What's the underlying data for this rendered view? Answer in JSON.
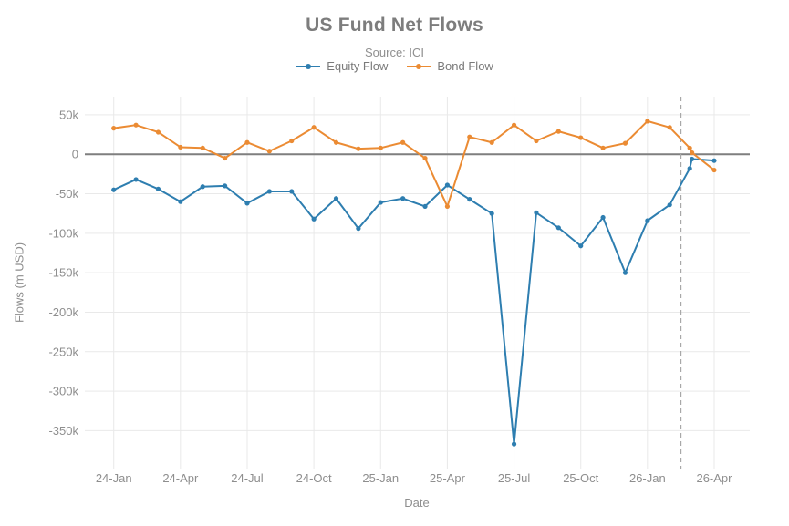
{
  "chart_data": {
    "type": "line",
    "title": "US Fund Net Flows",
    "subtitle": "Source: ICI",
    "xlabel": "Date",
    "ylabel": "Flows (m USD)",
    "values_unit": "k (thousands of m USD)",
    "grid": true,
    "legend_position": "top-center",
    "x_tick_labels": [
      "24-Jan",
      "24-Apr",
      "24-Jul",
      "24-Oct",
      "25-Jan",
      "25-Apr",
      "25-Jul",
      "25-Oct",
      "26-Jan",
      "26-Apr"
    ],
    "x_tick_month_index": [
      0,
      3,
      6,
      9,
      12,
      15,
      18,
      21,
      24,
      27
    ],
    "y_tick_labels": [
      "50k",
      "0",
      "-50k",
      "-100k",
      "-150k",
      "-200k",
      "-250k",
      "-300k",
      "-350k"
    ],
    "y_tick_values": [
      50,
      0,
      -50,
      -100,
      -150,
      -200,
      -250,
      -300,
      -350
    ],
    "ylim": [
      -398,
      73
    ],
    "xlim_month_index": [
      -1.3,
      28.6
    ],
    "dashed_vline_month_index": 25.5,
    "zero_line": true,
    "colors": {
      "background": "#ffffff",
      "grid": "#e9e9e9",
      "zero_line": "#7f7f7f",
      "divider": "#a8a8a8"
    },
    "x_months": [
      "24-Jan",
      "24-Feb",
      "24-Mar",
      "24-Apr",
      "24-May",
      "24-Jun",
      "24-Jul",
      "24-Aug",
      "24-Sep",
      "24-Oct",
      "24-Nov",
      "24-Dec",
      "25-Jan",
      "25-Feb",
      "25-Mar",
      "25-Apr",
      "25-May",
      "25-Jun",
      "25-Jul",
      "25-Aug",
      "25-Sep",
      "25-Oct",
      "25-Nov",
      "25-Dec",
      "26-Jan",
      "26-Feb",
      "26-Mar",
      "26-Mar",
      "26-Apr"
    ],
    "series": [
      {
        "name": "Equity Flow",
        "color": "#2e7eb0",
        "x_month_index": [
          0,
          1,
          2,
          3,
          4,
          5,
          6,
          7,
          8,
          9,
          10,
          11,
          12,
          13,
          14,
          15,
          16,
          17,
          18,
          19,
          20,
          21,
          22,
          23,
          24,
          25,
          25.9,
          26,
          27
        ],
        "values": [
          -45,
          -32,
          -44,
          -60,
          -41,
          -40,
          -62,
          -47,
          -47,
          -82,
          -56,
          -94,
          -61,
          -56,
          -66,
          -39,
          -57,
          -75,
          -367,
          -74,
          -93,
          -116,
          -80,
          -150,
          -84,
          -64,
          -18,
          -6,
          -8
        ]
      },
      {
        "name": "Bond Flow",
        "color": "#eb8b33",
        "x_month_index": [
          0,
          1,
          2,
          3,
          4,
          5,
          6,
          7,
          8,
          9,
          10,
          11,
          12,
          13,
          14,
          15,
          16,
          17,
          18,
          19,
          20,
          21,
          22,
          23,
          24,
          25,
          25.9,
          26,
          27
        ],
        "values": [
          33,
          37,
          28,
          9,
          8,
          -5,
          15,
          4,
          17,
          34,
          15,
          7,
          8,
          15,
          -5,
          -66,
          22,
          15,
          37,
          17,
          29,
          21,
          8,
          14,
          42,
          34,
          8,
          2,
          -20
        ]
      }
    ]
  }
}
